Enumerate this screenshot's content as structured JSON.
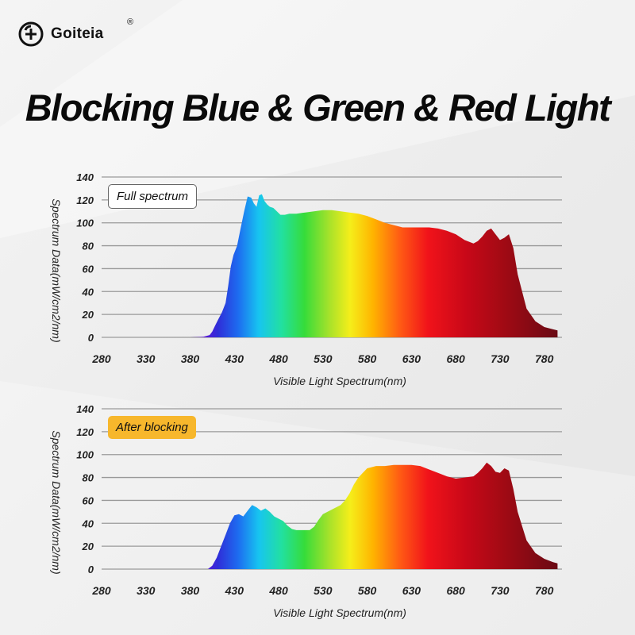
{
  "brand": {
    "name": "Goiteia",
    "registered": "®"
  },
  "title": "Blocking Blue & Green & Red Light",
  "chart_data": [
    {
      "type": "area",
      "label": "Full spectrum",
      "xlabel": "Visible Light Spectrum(nm)",
      "ylabel": "Spectrum Data(mW/cm2/nm)",
      "xlim": [
        280,
        800
      ],
      "ylim": [
        0,
        140
      ],
      "xticks": [
        280,
        330,
        380,
        430,
        480,
        530,
        580,
        630,
        680,
        730,
        780
      ],
      "yticks": [
        0,
        20,
        40,
        60,
        80,
        100,
        120,
        140
      ],
      "grid": true,
      "x": [
        280,
        380,
        395,
        402,
        405,
        408,
        412,
        416,
        420,
        423,
        426,
        429,
        433,
        437,
        441,
        445,
        449,
        452,
        455,
        458,
        461,
        464,
        467,
        470,
        474,
        478,
        482,
        487,
        492,
        500,
        510,
        520,
        530,
        540,
        550,
        560,
        570,
        580,
        590,
        600,
        610,
        620,
        630,
        640,
        650,
        660,
        670,
        680,
        690,
        700,
        705,
        710,
        715,
        720,
        725,
        730,
        735,
        740,
        745,
        750,
        760,
        770,
        780,
        790,
        795
      ],
      "y": [
        0,
        0,
        0.5,
        2,
        5,
        10,
        16,
        22,
        30,
        45,
        62,
        72,
        80,
        95,
        110,
        123,
        122,
        117,
        114,
        124,
        125,
        119,
        116,
        114,
        113,
        110,
        107,
        107,
        108,
        108,
        109,
        110,
        111,
        111,
        110,
        109,
        108,
        106,
        103,
        100,
        98,
        96,
        96,
        96,
        96,
        95,
        93,
        90,
        85,
        82,
        84,
        88,
        93,
        95,
        90,
        85,
        87,
        90,
        78,
        55,
        25,
        14,
        9,
        7,
        6
      ]
    },
    {
      "type": "area",
      "label": "After blocking",
      "xlabel": "Visible Light Spectrum(nm)",
      "ylabel": "Spectrum Data(mW/cm2/nm)",
      "xlim": [
        280,
        800
      ],
      "ylim": [
        0,
        140
      ],
      "xticks": [
        280,
        330,
        380,
        430,
        480,
        530,
        580,
        630,
        680,
        730,
        780
      ],
      "yticks": [
        0,
        20,
        40,
        60,
        80,
        100,
        120,
        140
      ],
      "grid": true,
      "x": [
        280,
        400,
        405,
        410,
        415,
        420,
        425,
        430,
        435,
        440,
        445,
        450,
        455,
        460,
        465,
        470,
        475,
        480,
        485,
        490,
        495,
        500,
        505,
        510,
        515,
        520,
        525,
        530,
        535,
        540,
        545,
        550,
        555,
        560,
        565,
        570,
        575,
        580,
        590,
        600,
        610,
        620,
        630,
        640,
        650,
        660,
        670,
        680,
        690,
        700,
        705,
        710,
        715,
        720,
        725,
        730,
        735,
        740,
        745,
        750,
        760,
        770,
        780,
        790,
        795
      ],
      "y": [
        0,
        0,
        3,
        10,
        20,
        30,
        40,
        47,
        48,
        46,
        51,
        56,
        54,
        51,
        53,
        50,
        46,
        44,
        42,
        38,
        35,
        34,
        34,
        34,
        34,
        37,
        43,
        48,
        50,
        52,
        54,
        56,
        60,
        66,
        74,
        80,
        84,
        88,
        90,
        90,
        91,
        91,
        91,
        90,
        87,
        84,
        81,
        79,
        80,
        81,
        84,
        88,
        93,
        90,
        85,
        84,
        88,
        86,
        70,
        50,
        25,
        14,
        9,
        6,
        5
      ]
    }
  ]
}
